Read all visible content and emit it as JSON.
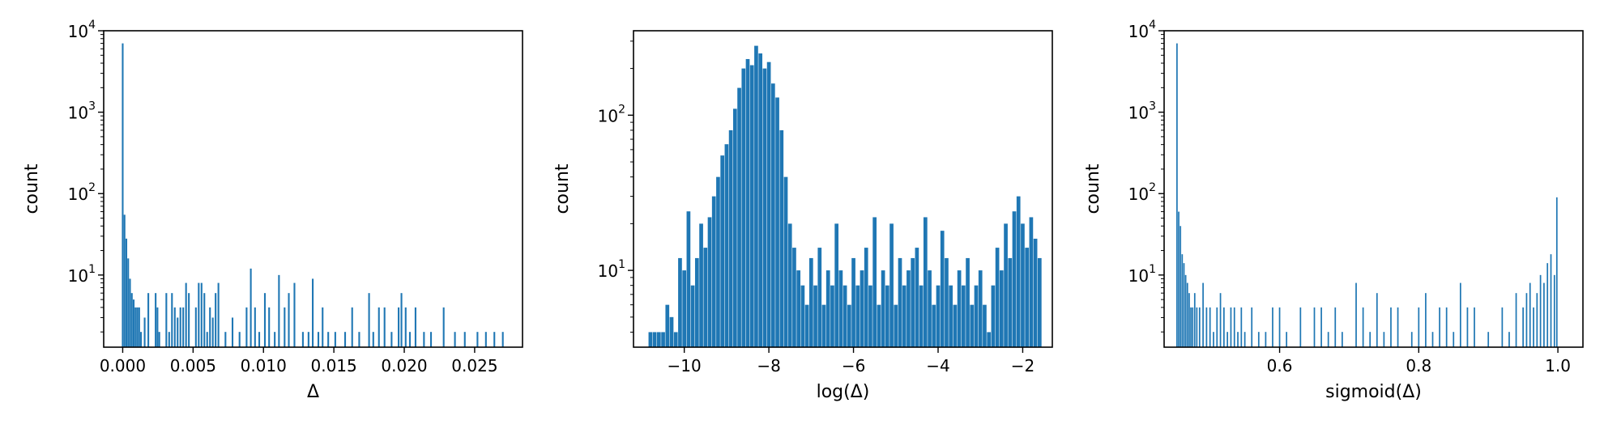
{
  "colors": {
    "bar": "#1f77b4",
    "axis": "#000000",
    "background": "#ffffff"
  },
  "chart_data": [
    {
      "type": "bar",
      "xlabel": "Δ",
      "ylabel": "count",
      "xlim": [
        -0.00135,
        0.0284
      ],
      "y_scale": "log",
      "ylim": [
        1.3,
        10000
      ],
      "xticks": [
        0.0,
        0.005,
        0.01,
        0.015,
        0.02,
        0.025
      ],
      "xtick_labels": [
        "0.000",
        "0.005",
        "0.010",
        "0.015",
        "0.020",
        "0.025"
      ],
      "yticks": [
        10,
        100,
        1000,
        10000
      ],
      "ytick_labels": [
        "10^1",
        "10^2",
        "10^3",
        "10^4"
      ],
      "grid": false,
      "x": [
        0.0,
        0.00013,
        0.00026,
        0.00039,
        0.00052,
        0.00065,
        0.00078,
        0.00091,
        0.00104,
        0.00117,
        0.0013,
        0.00156,
        0.00182,
        0.00234,
        0.00247,
        0.0026,
        0.0031,
        0.0033,
        0.0035,
        0.0037,
        0.0039,
        0.0041,
        0.0043,
        0.0045,
        0.0047,
        0.0052,
        0.0054,
        0.0056,
        0.0058,
        0.006,
        0.0062,
        0.0064,
        0.0066,
        0.0068,
        0.0073,
        0.0078,
        0.0083,
        0.0088,
        0.0091,
        0.0094,
        0.0097,
        0.0101,
        0.0104,
        0.0108,
        0.0111,
        0.0115,
        0.0118,
        0.0122,
        0.0128,
        0.0132,
        0.0135,
        0.0139,
        0.0142,
        0.0146,
        0.0151,
        0.0158,
        0.0163,
        0.0168,
        0.0175,
        0.0178,
        0.0182,
        0.0186,
        0.0191,
        0.0196,
        0.0198,
        0.0201,
        0.0204,
        0.0208,
        0.0214,
        0.0219,
        0.0228,
        0.0236,
        0.0243,
        0.0252,
        0.0258,
        0.0264,
        0.027
      ],
      "values": [
        7000,
        55,
        28,
        16,
        9,
        6,
        5,
        4,
        4,
        4,
        2,
        3,
        6,
        6,
        4,
        2,
        6,
        2,
        6,
        4,
        3,
        4,
        4,
        8,
        6,
        4,
        8,
        8,
        6,
        2,
        4,
        3,
        6,
        8,
        2,
        3,
        2,
        4,
        12,
        4,
        2,
        6,
        4,
        2,
        10,
        4,
        6,
        8,
        2,
        2,
        9,
        2,
        4,
        2,
        2,
        2,
        4,
        2,
        6,
        2,
        4,
        4,
        2,
        4,
        6,
        4,
        2,
        4,
        2,
        2,
        4,
        2,
        2,
        2,
        2,
        2,
        2
      ],
      "bar_width": 0.00012
    },
    {
      "type": "bar",
      "xlabel": "log(Δ)",
      "ylabel": "count",
      "xlim": [
        -11.2,
        -1.3
      ],
      "y_scale": "log",
      "ylim": [
        3.2,
        350
      ],
      "xticks": [
        -10,
        -8,
        -6,
        -4,
        -2
      ],
      "xtick_labels": [
        "−10",
        "−8",
        "−6",
        "−4",
        "−2"
      ],
      "yticks": [
        10,
        100
      ],
      "ytick_labels": [
        "10^1",
        "10^2"
      ],
      "grid": false,
      "x": [
        -10.8,
        -10.7,
        -10.6,
        -10.5,
        -10.4,
        -10.3,
        -10.2,
        -10.1,
        -10.0,
        -9.9,
        -9.8,
        -9.7,
        -9.6,
        -9.5,
        -9.4,
        -9.3,
        -9.2,
        -9.1,
        -9.0,
        -8.9,
        -8.8,
        -8.7,
        -8.6,
        -8.5,
        -8.4,
        -8.3,
        -8.2,
        -8.1,
        -8.0,
        -7.9,
        -7.8,
        -7.7,
        -7.6,
        -7.5,
        -7.4,
        -7.3,
        -7.2,
        -7.1,
        -7.0,
        -6.9,
        -6.8,
        -6.7,
        -6.6,
        -6.5,
        -6.4,
        -6.3,
        -6.2,
        -6.1,
        -6.0,
        -5.9,
        -5.8,
        -5.7,
        -5.6,
        -5.5,
        -5.4,
        -5.3,
        -5.2,
        -5.1,
        -5.0,
        -4.9,
        -4.8,
        -4.7,
        -4.6,
        -4.5,
        -4.4,
        -4.3,
        -4.2,
        -4.1,
        -4.0,
        -3.9,
        -3.8,
        -3.7,
        -3.6,
        -3.5,
        -3.4,
        -3.3,
        -3.2,
        -3.1,
        -3.0,
        -2.9,
        -2.8,
        -2.7,
        -2.6,
        -2.5,
        -2.4,
        -2.3,
        -2.2,
        -2.1,
        -2.0,
        -1.9,
        -1.8,
        -1.7,
        -1.6
      ],
      "values": [
        4,
        4,
        4,
        4,
        6,
        5,
        4,
        12,
        10,
        24,
        8,
        12,
        20,
        14,
        22,
        30,
        40,
        55,
        65,
        80,
        110,
        150,
        200,
        230,
        210,
        280,
        250,
        200,
        220,
        160,
        130,
        80,
        40,
        20,
        14,
        10,
        8,
        6,
        12,
        8,
        14,
        6,
        10,
        8,
        20,
        10,
        8,
        6,
        12,
        8,
        10,
        14,
        8,
        22,
        6,
        10,
        8,
        20,
        6,
        12,
        8,
        10,
        12,
        14,
        8,
        22,
        10,
        6,
        8,
        18,
        12,
        8,
        6,
        10,
        8,
        12,
        6,
        8,
        10,
        6,
        4,
        8,
        14,
        10,
        20,
        12,
        24,
        30,
        20,
        14,
        22,
        16,
        12
      ],
      "bar_width": 0.09
    },
    {
      "type": "bar",
      "xlabel": "sigmoid(Δ)",
      "ylabel": "count",
      "xlim": [
        0.434,
        1.036
      ],
      "y_scale": "log",
      "ylim": [
        1.3,
        10000
      ],
      "xticks": [
        0.6,
        0.8,
        1.0
      ],
      "xtick_labels": [
        "0.6",
        "0.8",
        "1.0"
      ],
      "yticks": [
        10,
        100,
        1000,
        10000
      ],
      "ytick_labels": [
        "10^1",
        "10^2",
        "10^3",
        "10^4"
      ],
      "grid": false,
      "x": [
        0.4525,
        0.455,
        0.4575,
        0.46,
        0.4625,
        0.465,
        0.4675,
        0.47,
        0.4725,
        0.475,
        0.478,
        0.481,
        0.485,
        0.49,
        0.495,
        0.5,
        0.505,
        0.51,
        0.515,
        0.52,
        0.525,
        0.53,
        0.535,
        0.54,
        0.545,
        0.55,
        0.56,
        0.57,
        0.58,
        0.59,
        0.6,
        0.61,
        0.63,
        0.65,
        0.66,
        0.67,
        0.68,
        0.69,
        0.71,
        0.72,
        0.73,
        0.74,
        0.75,
        0.76,
        0.77,
        0.79,
        0.8,
        0.81,
        0.82,
        0.83,
        0.84,
        0.85,
        0.86,
        0.87,
        0.88,
        0.9,
        0.92,
        0.93,
        0.94,
        0.95,
        0.955,
        0.96,
        0.965,
        0.97,
        0.975,
        0.98,
        0.985,
        0.99,
        0.995,
        0.9985
      ],
      "values": [
        7000,
        60,
        40,
        18,
        14,
        10,
        8,
        6,
        4,
        4,
        6,
        4,
        4,
        8,
        4,
        4,
        2,
        4,
        6,
        4,
        2,
        4,
        4,
        2,
        4,
        2,
        4,
        2,
        2,
        4,
        4,
        2,
        4,
        4,
        4,
        2,
        4,
        2,
        8,
        4,
        2,
        6,
        2,
        4,
        4,
        2,
        4,
        6,
        2,
        4,
        4,
        2,
        8,
        4,
        4,
        2,
        4,
        2,
        6,
        4,
        6,
        8,
        4,
        6,
        10,
        8,
        14,
        18,
        10,
        90
      ],
      "bar_width": 0.002
    }
  ]
}
